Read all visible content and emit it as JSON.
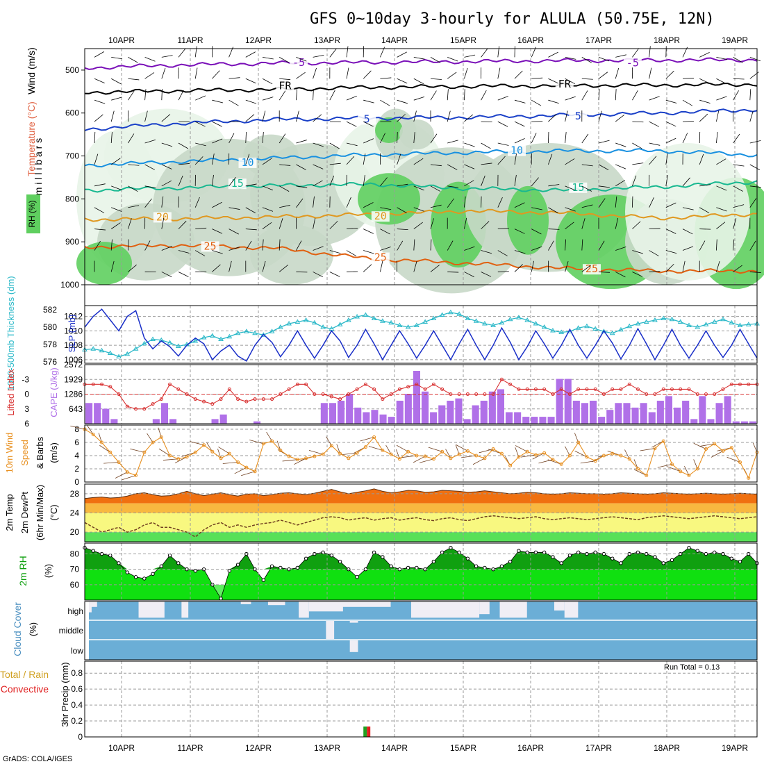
{
  "title": "GFS 0~10day 3-hourly for ALULA (50.75E, 12N)",
  "footer": "GrADS: COLA/IGES",
  "run_total": "Run Total = 0.13",
  "days": [
    "10APR",
    "11APR",
    "12APR",
    "13APR",
    "14APR",
    "15APR",
    "16APR",
    "17APR",
    "18APR",
    "19APR"
  ],
  "colors": {
    "rh_light": "#e8f4e8",
    "rh_mid": "#c8d8c8",
    "rh_dark": "#5fcf5f",
    "slp": "#1a2fc8",
    "thickness": "#2ab8c8",
    "lifted": "#d83030",
    "cape": "#b070e8",
    "wind": "#e89020",
    "barb": "#704020",
    "temp_fill": "#f07010",
    "temp_band": "#f8b840",
    "yellow_band": "#f8f880",
    "green_band": "#58e058",
    "rh2m_dark": "#10a010",
    "rh2m_light": "#10e010",
    "cloud": "#6baed6",
    "cloud_gap": "#f0eef5",
    "precip_total": "#20a020",
    "precip_conv": "#e02020"
  },
  "chart_data": [
    {
      "panel": "upper_air",
      "type": "heatmap",
      "ylabel_parts": [
        "RH (%)",
        "Temperature (°C)",
        "Wind (m/s)"
      ],
      "ylabel_units": "m i l l i b a r s",
      "y_ticks": [
        "500",
        "600",
        "700",
        "800",
        "900",
        "1000"
      ],
      "ylim": [
        450,
        1000
      ],
      "contour_labels": [
        {
          "text": "-5",
          "day": 2.6,
          "p": 487,
          "c": "#7a10b8"
        },
        {
          "text": "-5",
          "day": 7.5,
          "p": 488,
          "c": "#7a10b8"
        },
        {
          "text": "FR",
          "day": 2.4,
          "p": 541,
          "c": "#000000"
        },
        {
          "text": "FR",
          "day": 6.5,
          "p": 537,
          "c": "#000000"
        },
        {
          "text": "5",
          "day": 3.6,
          "p": 619,
          "c": "#1a40c8"
        },
        {
          "text": "5",
          "day": 6.7,
          "p": 612,
          "c": "#1a40c8"
        },
        {
          "text": "10",
          "day": 1.85,
          "p": 720,
          "c": "#1890e0"
        },
        {
          "text": "10",
          "day": 5.8,
          "p": 692,
          "c": "#1890e0"
        },
        {
          "text": "15",
          "day": 1.7,
          "p": 769,
          "c": "#18b890"
        },
        {
          "text": "15",
          "day": 6.7,
          "p": 778,
          "c": "#18b890"
        },
        {
          "text": "20",
          "day": 0.6,
          "p": 847,
          "c": "#e09820"
        },
        {
          "text": "20",
          "day": 3.8,
          "p": 845,
          "c": "#e09820"
        },
        {
          "text": "25",
          "day": 1.3,
          "p": 915,
          "c": "#e06010"
        },
        {
          "text": "25",
          "day": 3.8,
          "p": 941,
          "c": "#e06010"
        },
        {
          "text": "25",
          "day": 6.9,
          "p": 968,
          "c": "#e06010"
        }
      ]
    },
    {
      "panel": "slp_thickness",
      "type": "line",
      "ylabel_left": "1000-500mb Thickness (dm)",
      "ylabel_right": "SLP (mb)",
      "thickness_ticks": [
        "582",
        "580",
        "578",
        "576"
      ],
      "slp_ticks": [
        "1012",
        "1010",
        "1008",
        "1006"
      ],
      "thickness_ylim": [
        576,
        582
      ],
      "slp_ylim": [
        1005.5,
        1013.5
      ],
      "slp": [
        1010.5,
        1012.0,
        1013.0,
        1011.5,
        1010.0,
        1012.0,
        1012.8,
        1009.0,
        1007.5,
        1008.6,
        1007.8,
        1006.5,
        1008.0,
        1009.0,
        1008.2,
        1006.0,
        1007.2,
        1008.0,
        1006.5,
        1005.8,
        1008.0,
        1009.5,
        1008.4,
        1006.4,
        1008.0,
        1010.0,
        1008.0,
        1006.2,
        1008.0,
        1010.0,
        1008.6,
        1006.3,
        1008.0,
        1010.2,
        1008.2,
        1006.0,
        1008.0,
        1010.0,
        1008.2,
        1006.2,
        1008.0,
        1010.0,
        1008.0,
        1006.0,
        1008.2,
        1010.2,
        1008.0,
        1006.0,
        1008.0,
        1010.4,
        1008.4,
        1006.0,
        1007.8,
        1010.0,
        1008.2,
        1006.2,
        1008.0,
        1010.2,
        1008.0,
        1006.2,
        1008.0,
        1010.0,
        1008.3,
        1006.1,
        1008.0,
        1010.3,
        1008.2,
        1006.0,
        1008.0,
        1010.2,
        1008.0,
        1006.2,
        1008.0,
        1010.0,
        1008.0,
        1006.3,
        1008.0,
        1010.2,
        1008.2,
        1006.2
      ],
      "thickness": [
        577.4,
        577.5,
        577.3,
        577.0,
        576.6,
        576.9,
        577.5,
        578.1,
        578.6,
        578.5,
        578.2,
        577.8,
        578.0,
        578.4,
        578.8,
        579.0,
        578.6,
        578.9,
        579.3,
        579.5,
        579.3,
        579.1,
        579.5,
        580.0,
        580.4,
        580.6,
        580.8,
        580.5,
        580.0,
        579.8,
        580.3,
        580.8,
        581.2,
        581.4,
        581.0,
        580.7,
        580.5,
        580.2,
        580.0,
        580.2,
        580.6,
        581.0,
        581.4,
        581.7,
        581.5,
        581.0,
        580.7,
        580.4,
        580.2,
        580.5,
        580.9,
        581.1,
        580.8,
        580.4,
        580.0,
        579.6,
        579.4,
        579.5,
        579.9,
        580.1,
        579.8,
        579.5,
        579.3,
        579.7,
        580.1,
        580.4,
        580.6,
        580.8,
        581.0,
        580.9,
        580.6,
        580.2,
        580.0,
        580.3,
        580.6,
        580.9,
        580.5,
        580.2,
        580.3,
        580.4
      ]
    },
    {
      "panel": "cape_lifted",
      "type": "bar",
      "ylabel_left": "Lifted Index",
      "ylabel_right": "CAPE (J/kg)",
      "lifted_ticks": [
        "-3",
        "0",
        "3",
        "6"
      ],
      "cape_ticks": [
        "2572",
        "1929",
        "1286",
        "643"
      ],
      "cape_ylim": [
        0,
        2572
      ],
      "lifted_ylim": [
        -6,
        6
      ],
      "cape": [
        900,
        900,
        650,
        200,
        0,
        0,
        0,
        0,
        200,
        900,
        200,
        0,
        0,
        0,
        0,
        200,
        400,
        0,
        0,
        0,
        100,
        0,
        0,
        0,
        0,
        0,
        0,
        0,
        900,
        900,
        1000,
        1300,
        700,
        500,
        600,
        400,
        300,
        1000,
        1300,
        2300,
        1400,
        500,
        800,
        1000,
        1100,
        200,
        800,
        1000,
        1400,
        1500,
        500,
        500,
        300,
        300,
        300,
        300,
        1950,
        1950,
        1000,
        900,
        1000,
        300,
        600,
        900,
        900,
        700,
        900,
        500,
        1000,
        1200,
        700,
        1000,
        200,
        1200,
        200,
        900,
        1200,
        100,
        100,
        100
      ],
      "lifted": [
        -2,
        -2,
        -2,
        -1.5,
        0,
        2.5,
        3,
        3,
        2,
        1,
        -2,
        -1,
        0,
        1,
        1.5,
        2,
        1,
        -1,
        1,
        1.5,
        1,
        1,
        1,
        0,
        -1,
        -2,
        -2,
        0,
        0,
        0.5,
        1,
        0,
        -1,
        -2,
        -1,
        1,
        0,
        -1,
        -1.5,
        -2,
        -1,
        -2,
        -1,
        0,
        0,
        0,
        0,
        0,
        0,
        -3,
        -2,
        -1,
        -1,
        -1,
        -1,
        0,
        -1,
        0,
        -1,
        -1,
        -1,
        0,
        -1,
        -1,
        -2,
        -1,
        0,
        0,
        -1,
        -1,
        -1,
        -1,
        0,
        0,
        0,
        -1,
        -2,
        -2,
        -2,
        -2
      ]
    },
    {
      "panel": "wind10m",
      "type": "line",
      "ylabel": "10m Wind Speed & Barbs (m/s)",
      "ticks": [
        "8",
        "6",
        "4",
        "2",
        "0"
      ],
      "ylim": [
        0,
        8
      ],
      "speed": [
        8.0,
        7.2,
        6.0,
        4.5,
        3.0,
        1.5,
        1.0,
        4.5,
        6.0,
        6.8,
        4.0,
        3.5,
        3.8,
        4.5,
        5.6,
        4.6,
        3.6,
        4.3,
        3.0,
        2.2,
        1.6,
        5.8,
        6.2,
        4.8,
        3.9,
        3.4,
        3.6,
        3.9,
        4.2,
        5.5,
        4.3,
        3.6,
        4.4,
        5.3,
        6.8,
        4.8,
        4.2,
        3.5,
        4.6,
        4.0,
        3.9,
        3.5,
        4.6,
        3.6,
        4.2,
        4.7,
        4.0,
        3.6,
        5.0,
        4.3,
        2.5,
        3.8,
        4.6,
        4.1,
        4.4,
        3.4,
        2.7,
        4.0,
        6.0,
        3.8,
        3.2,
        4.0,
        4.3,
        4.0,
        3.5,
        2.0,
        1.0,
        5.1,
        6.2,
        2.7,
        1.6,
        1.0,
        2.0,
        5.0,
        5.8,
        4.7,
        5.2,
        3.0,
        0.6,
        4.5
      ]
    },
    {
      "panel": "temp2m",
      "type": "area",
      "ylabel": "2m Temp 2m DewPt (6hr Min/Max) (°C)",
      "ticks": [
        "28",
        "24",
        "20"
      ],
      "ylim": [
        18,
        30
      ],
      "temp": [
        27.0,
        27.2,
        27.3,
        27.1,
        27.2,
        27.5,
        28.0,
        28.2,
        27.8,
        27.5,
        27.6,
        28.0,
        28.5,
        28.0,
        27.6,
        27.9,
        28.2,
        27.8,
        27.5,
        27.9,
        28.0,
        27.6,
        27.8,
        28.1,
        28.2,
        28.0,
        27.8,
        28.1,
        28.5,
        28.9,
        28.4,
        28.0,
        28.3,
        28.6,
        29.0,
        28.5,
        28.2,
        28.4,
        28.7,
        28.6,
        28.3,
        28.4,
        28.7,
        28.6,
        28.5,
        28.3,
        28.4,
        28.6,
        28.4,
        28.2,
        28.0,
        28.1,
        28.3,
        28.2,
        28.0,
        27.9,
        28.0,
        28.2,
        28.1,
        28.0,
        28.0,
        27.9,
        28.0,
        28.2,
        28.1,
        28.0,
        27.9,
        28.0,
        28.2,
        28.1,
        28.0,
        27.9,
        28.0,
        28.1,
        28.0,
        27.9,
        28.0,
        28.1,
        28.0,
        27.9
      ],
      "dewpt": [
        22.0,
        21.0,
        20.0,
        20.5,
        21.0,
        20.0,
        20.5,
        21.5,
        22.0,
        21.0,
        21.0,
        20.5,
        20.0,
        19.0,
        20.5,
        21.5,
        22.0,
        21.0,
        21.5,
        21.0,
        21.5,
        21.8,
        22.0,
        22.5,
        22.0,
        21.5,
        22.0,
        22.5,
        23.0,
        23.2,
        23.0,
        22.5,
        22.8,
        23.0,
        22.5,
        22.8,
        23.0,
        22.5,
        22.8,
        23.0,
        22.6,
        22.4,
        22.8,
        23.0,
        22.6,
        22.4,
        22.8,
        23.2,
        23.4,
        23.2,
        23.0,
        22.8,
        23.0,
        23.2,
        22.8,
        22.6,
        22.8,
        23.0,
        22.8,
        22.6,
        22.8,
        23.0,
        23.2,
        23.0,
        22.8,
        22.6,
        23.0,
        23.2,
        23.4,
        23.2,
        23.0,
        22.8,
        23.0,
        23.2,
        23.4,
        23.2,
        23.0,
        22.8,
        23.0,
        23.2
      ]
    },
    {
      "panel": "rh2m",
      "type": "area",
      "ylabel": "2m RH (%)",
      "ticks": [
        "80",
        "70",
        "60"
      ],
      "ylim": [
        50,
        87
      ],
      "rh": [
        84,
        82,
        80,
        79,
        74,
        68,
        65,
        64,
        67,
        72,
        79,
        74,
        70,
        69,
        70,
        60,
        51,
        69,
        73,
        80,
        70,
        63,
        72,
        71,
        70,
        71,
        77,
        80,
        81,
        79,
        75,
        70,
        65,
        70,
        81,
        78,
        72,
        70,
        71,
        71,
        70,
        75,
        81,
        84,
        81,
        77,
        72,
        71,
        70,
        72,
        75,
        82,
        81,
        81,
        81,
        78,
        74,
        79,
        81,
        80,
        81,
        80,
        77,
        74,
        80,
        81,
        80,
        78,
        74,
        76,
        80,
        84,
        82,
        80,
        81,
        80,
        77,
        75,
        80,
        74
      ]
    },
    {
      "panel": "cloud_cover",
      "type": "bar",
      "ylabel": "Cloud Cover (%)",
      "levels": [
        "high",
        "middle",
        "low"
      ],
      "high_gaps": [
        {
          "day": 0.05,
          "w": 0.12,
          "depth": 0.3
        },
        {
          "day": 0.0,
          "w": 0.04,
          "depth": 0.6
        },
        {
          "day": 0.8,
          "w": 0.38,
          "depth": 0.9
        },
        {
          "day": 1.43,
          "w": 0.1,
          "depth": 0.9
        },
        {
          "day": 2.3,
          "w": 0.15,
          "depth": 0.15
        },
        {
          "day": 2.7,
          "w": 0.25,
          "depth": 0.2
        },
        {
          "day": 3.15,
          "w": 0.15,
          "depth": 0.9
        },
        {
          "day": 3.3,
          "w": 0.5,
          "depth": 0.55
        },
        {
          "day": 3.7,
          "w": 0.8,
          "depth": 0.3
        },
        {
          "day": 4.8,
          "w": 1.0,
          "depth": 0.9
        },
        {
          "day": 5.8,
          "w": 0.15,
          "depth": 0.7
        },
        {
          "day": 6.1,
          "w": 0.4,
          "depth": 0.9
        },
        {
          "day": 6.9,
          "w": 0.15,
          "depth": 0.5
        },
        {
          "day": 7.05,
          "w": 0.2,
          "depth": 0.9
        }
      ],
      "mid_gaps": [
        {
          "day": 3.55,
          "w": 0.12,
          "depth": 1.0
        },
        {
          "day": 3.9,
          "w": 0.12,
          "depth": 0.1
        }
      ],
      "low_gaps": [
        {
          "day": 3.9,
          "w": 0.12,
          "depth": 0.6
        }
      ]
    },
    {
      "panel": "precip",
      "type": "bar",
      "ylabel": "3hr Precip (mm)",
      "ylabel_side": [
        "Total / Rain",
        "Convective"
      ],
      "ticks": [
        "0.8",
        "0.6",
        "0.4",
        "0.2",
        "0"
      ],
      "ylim": [
        0,
        0.95
      ],
      "bars": [
        {
          "day": 3.6,
          "total": 0.13,
          "conv": 0.13
        }
      ]
    }
  ]
}
